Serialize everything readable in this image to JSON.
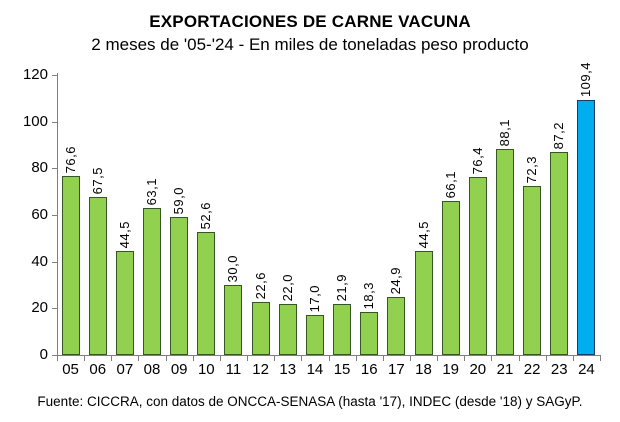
{
  "title": "EXPORTACIONES DE CARNE VACUNA",
  "subtitle": "2 meses de '05-'24 - En miles de toneladas peso producto",
  "source": "Fuente: CICCRA, con datos de ONCCA-SENASA (hasta '17), INDEC (desde '18) y SAGyP.",
  "chart_data": {
    "type": "bar",
    "title": "EXPORTACIONES DE CARNE VACUNA",
    "subtitle": "2 meses de '05-'24 - En miles de toneladas peso producto",
    "categories": [
      "05",
      "06",
      "07",
      "08",
      "09",
      "10",
      "11",
      "12",
      "13",
      "14",
      "15",
      "16",
      "17",
      "18",
      "19",
      "20",
      "21",
      "22",
      "23",
      "24"
    ],
    "values": [
      76.6,
      67.5,
      44.5,
      63.1,
      59.0,
      52.6,
      30.0,
      22.6,
      22.0,
      17.0,
      21.9,
      18.3,
      24.9,
      44.5,
      66.1,
      76.4,
      88.1,
      72.3,
      87.2,
      109.4
    ],
    "value_labels": [
      "76,6",
      "67,5",
      "44,5",
      "63,1",
      "59,0",
      "52,6",
      "30,0",
      "22,6",
      "22,0",
      "17,0",
      "21,9",
      "18,3",
      "24,9",
      "44,5",
      "66,1",
      "76,4",
      "88,1",
      "72,3",
      "87,2",
      "109,4"
    ],
    "xlabel": "",
    "ylabel": "",
    "ylim": [
      0,
      120
    ],
    "ytick_interval": 20,
    "yticks": [
      "0",
      "20",
      "40",
      "60",
      "80",
      "100",
      "120"
    ],
    "grid": false,
    "legend": false,
    "highlight_index": 19,
    "colors": {
      "bar_fill": "#92D050",
      "bar_border": "#385623",
      "highlight_fill": "#00AEEF",
      "highlight_border": "#1F3864",
      "axis": "#7f7f7f",
      "text": "#000000"
    }
  }
}
